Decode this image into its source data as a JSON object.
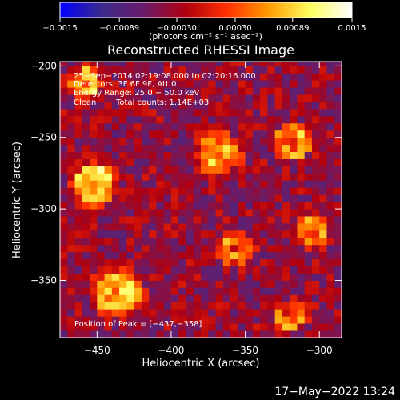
{
  "chart_data": {
    "type": "heatmap",
    "title": "Reconstructed RHESSI Image",
    "xlabel": "Heliocentric X (arcsec)",
    "ylabel": "Heliocentric Y (arcsec)",
    "xlim": [
      -475,
      -285
    ],
    "ylim": [
      -390,
      -197
    ],
    "xticks": [
      -450,
      -400,
      -350,
      -300
    ],
    "xtick_labels": [
      "−450",
      "−400",
      "−350",
      "−300"
    ],
    "yticks": [
      -200,
      -250,
      -300,
      -350
    ],
    "ytick_labels": [
      "−200",
      "−250",
      "−300",
      "−350"
    ],
    "colorbar": {
      "min": -0.0015,
      "max": 0.0015,
      "ticks": [
        -0.0015,
        -0.00089,
        -0.0003,
        0.0003,
        0.00089,
        0.0015
      ],
      "tick_labels": [
        "−0.0015",
        "−0.00089",
        "−0.00030",
        "0.00030",
        "0.00089",
        "0.0015"
      ],
      "units": "(photons cm⁻² s⁻¹ asec⁻²)",
      "colormap": [
        "#0000ff",
        "#3a2a8a",
        "#6a1c6a",
        "#b00010",
        "#ff3000",
        "#ff9a00",
        "#ffff60",
        "#ffffff"
      ]
    },
    "annotations": [
      "25−Sep−2014 02:19:08.000 to 02:20:16.000",
      "Detectors: 3F 6F 9F, Att 0",
      "Energy Range: 25.0 − 50.0 keV",
      "Clean",
      "Total counts: 1.14E+03"
    ],
    "peak_label": "Position of Peak = [−437,−358]",
    "peak": [
      -437,
      -358
    ],
    "sources": [
      {
        "x": -458,
        "y": -212,
        "sigma": 13,
        "amp": 0.0012
      },
      {
        "x": -452,
        "y": -283,
        "sigma": 17,
        "amp": 0.0014
      },
      {
        "x": -437,
        "y": -358,
        "sigma": 19,
        "amp": 0.00145
      },
      {
        "x": -368,
        "y": -262,
        "sigma": 17,
        "amp": 0.0012
      },
      {
        "x": -318,
        "y": -253,
        "sigma": 14,
        "amp": 0.00125
      },
      {
        "x": -357,
        "y": -328,
        "sigma": 13,
        "amp": 0.0011
      },
      {
        "x": -305,
        "y": -315,
        "sigma": 13,
        "amp": 0.001
      },
      {
        "x": -320,
        "y": -375,
        "sigma": 13,
        "amp": 0.00085
      }
    ]
  },
  "timestamp": "17−May−2022 13:24"
}
